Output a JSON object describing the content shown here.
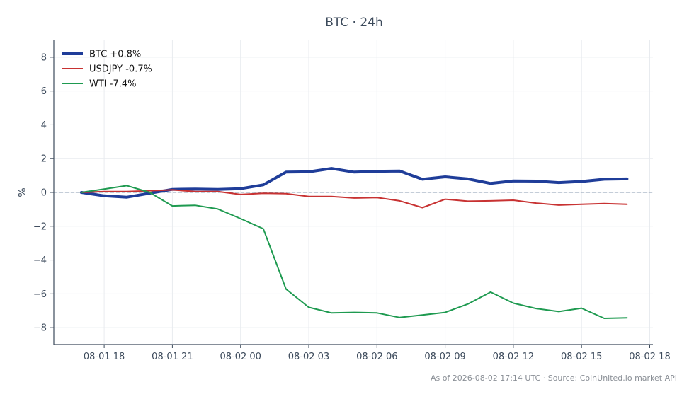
{
  "chart_data": {
    "type": "line",
    "title": "BTC · 24h",
    "xlabel": "",
    "ylabel": "%",
    "grid": true,
    "legend_position": "top-left",
    "zero_line": true,
    "x": [
      "08-01 17",
      "08-01 18",
      "08-01 19",
      "08-01 20",
      "08-01 21",
      "08-01 22",
      "08-01 23",
      "08-02 00",
      "08-02 01",
      "08-02 02",
      "08-02 03",
      "08-02 04",
      "08-02 05",
      "08-02 06",
      "08-02 07",
      "08-02 08",
      "08-02 09",
      "08-02 10",
      "08-02 11",
      "08-02 12",
      "08-02 13",
      "08-02 14",
      "08-02 15",
      "08-02 16",
      "08-02 17"
    ],
    "xticks": [
      "08-01 18",
      "08-01 21",
      "08-02 00",
      "08-02 03",
      "08-02 06",
      "08-02 09",
      "08-02 12",
      "08-02 15",
      "08-02 18"
    ],
    "yticks": [
      "8",
      "6",
      "4",
      "2",
      "0",
      "−2",
      "−4",
      "−6",
      "−8"
    ],
    "ylim": [
      -9,
      9
    ],
    "series": [
      {
        "name": "BTC +0.8%",
        "color": "#1f3d99",
        "values": [
          0.0,
          -0.2,
          -0.28,
          -0.05,
          0.18,
          0.2,
          0.18,
          0.22,
          0.45,
          1.2,
          1.22,
          1.42,
          1.2,
          1.25,
          1.27,
          0.78,
          0.92,
          0.8,
          0.53,
          0.68,
          0.67,
          0.58,
          0.65,
          0.78,
          0.8
        ]
      },
      {
        "name": "USDJPY -0.7%",
        "color": "#c83232",
        "values": [
          0.0,
          0.05,
          0.05,
          0.1,
          0.15,
          0.05,
          0.05,
          -0.12,
          -0.05,
          -0.07,
          -0.24,
          -0.24,
          -0.33,
          -0.3,
          -0.5,
          -0.9,
          -0.4,
          -0.52,
          -0.5,
          -0.46,
          -0.63,
          -0.75,
          -0.7,
          -0.66,
          -0.7
        ]
      },
      {
        "name": "WTI -7.4%",
        "color": "#1e9a50",
        "values": [
          0.0,
          0.2,
          0.4,
          0.0,
          -0.8,
          -0.76,
          -0.98,
          -1.55,
          -2.15,
          -5.72,
          -6.8,
          -7.13,
          -7.1,
          -7.13,
          -7.4,
          -7.25,
          -7.1,
          -6.6,
          -5.9,
          -6.55,
          -6.87,
          -7.05,
          -6.85,
          -7.45,
          -7.42
        ]
      }
    ],
    "footer": "As of 2026-08-02 17:14 UTC · Source: CoinUnited.io market API"
  }
}
